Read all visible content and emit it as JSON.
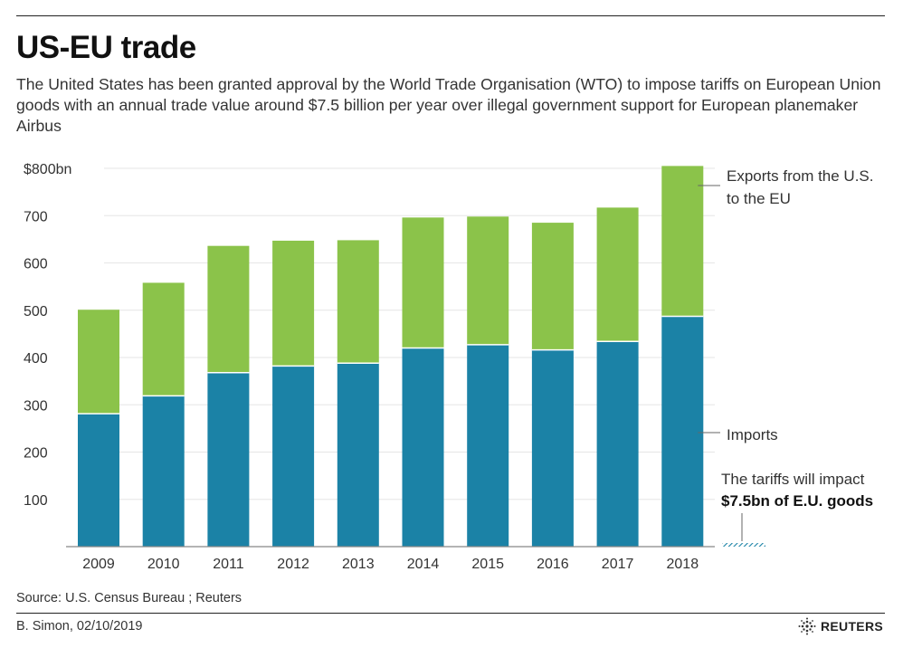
{
  "header": {
    "title": "US-EU trade",
    "subtitle": "The United States has been granted approval by the World Trade Organisation (WTO) to impose tariffs on European Union goods with an annual trade value around $7.5 billion per year over illegal government support for European planemaker Airbus"
  },
  "chart_data": {
    "type": "bar",
    "stacked": true,
    "categories": [
      "2009",
      "2010",
      "2011",
      "2012",
      "2013",
      "2014",
      "2015",
      "2016",
      "2017",
      "2018"
    ],
    "series": [
      {
        "name": "Imports",
        "color": "#1b82a6",
        "values": [
          281,
          319,
          368,
          382,
          388,
          420,
          427,
          416,
          434,
          487
        ]
      },
      {
        "name": "Exports from the U.S. to the EU",
        "color": "#8bc34a",
        "values": [
          220,
          239,
          268,
          265,
          260,
          276,
          271,
          269,
          283,
          318
        ]
      }
    ],
    "ylim": [
      0,
      800
    ],
    "yticks": [
      100,
      200,
      300,
      400,
      500,
      600,
      700,
      800
    ],
    "ytick_labels": [
      "100",
      "200",
      "300",
      "400",
      "500",
      "600",
      "700",
      "$800bn"
    ],
    "grid": true,
    "legend": "right",
    "labels": {
      "exports_line1": "Exports from the U.S.",
      "exports_line2": "to the EU",
      "imports": "Imports"
    },
    "annotation": {
      "line1": "The tariffs will impact",
      "line2": "$7.5bn of E.U. goods",
      "value": 7.5
    }
  },
  "footer": {
    "source": "Source: U.S. Census Bureau ; Reuters",
    "credit": "B. Simon,  02/10/2019",
    "brand": "REUTERS",
    "brand_icon": "reuters-logo-icon"
  },
  "colors": {
    "imports": "#1b82a6",
    "exports": "#8bc34a",
    "annotation_hatch": "#1b82a6",
    "grid": "#e6e6e6",
    "axis": "#888888"
  }
}
